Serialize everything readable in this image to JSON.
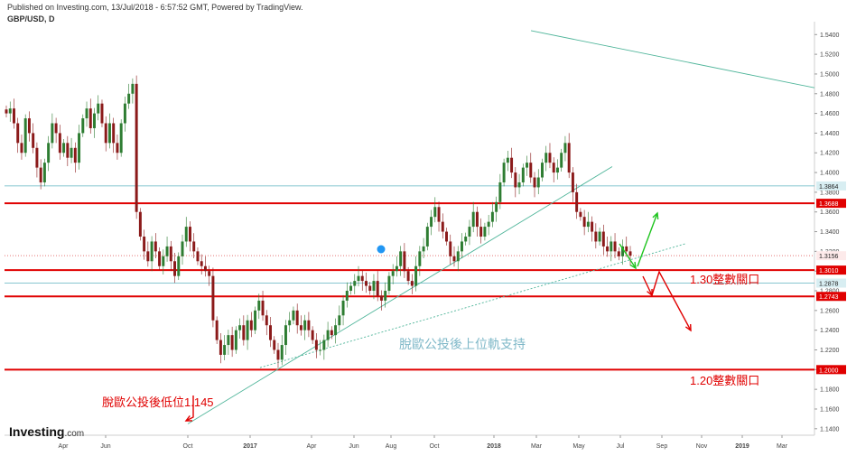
{
  "header": {
    "published": "Published on Investing.com, 13/Jul/2018 - 6:57:52 GMT, Powered by TradingView.",
    "symbol": "GBP/USD, D"
  },
  "logo": {
    "name": "Investing",
    "suffix": ".com"
  },
  "chart_data": {
    "type": "candlestick",
    "title": "GBP/USD, D",
    "ylim": [
      1.13,
      1.55
    ],
    "x_ticks": [
      "Apr",
      "Jun",
      "Oct",
      "2017",
      "Apr",
      "Jun",
      "Aug",
      "Oct",
      "2018",
      "Mar",
      "May",
      "Jul",
      "Sep",
      "Nov",
      "2019",
      "Mar"
    ],
    "y_ticks": [
      "1.5400",
      "1.5200",
      "1.5000",
      "1.4800",
      "1.4600",
      "1.4400",
      "1.4200",
      "1.4000",
      "1.3800",
      "1.3600",
      "1.3400",
      "1.3200",
      "1.3000",
      "1.2800",
      "1.2600",
      "1.2400",
      "1.2200",
      "1.2000",
      "1.1800",
      "1.1600",
      "1.1400"
    ],
    "levels": [
      {
        "label": "1.3688",
        "value": 1.3688,
        "color": "#e00000",
        "style": "solid"
      },
      {
        "label": "1.3010",
        "value": 1.301,
        "color": "#e00000",
        "style": "solid"
      },
      {
        "label": "1.2743",
        "value": 1.2743,
        "color": "#e00000",
        "style": "solid"
      },
      {
        "label": "1.2000",
        "value": 1.2,
        "color": "#e00000",
        "style": "solid"
      },
      {
        "label": "1.3864",
        "value": 1.3864,
        "color": "#5fb3c0",
        "style": "thin"
      },
      {
        "label": "1.3156",
        "value": 1.3156,
        "color": "#e57373",
        "style": "dotted"
      },
      {
        "label": "1.2878",
        "value": 1.2878,
        "color": "#5fb3c0",
        "style": "thin"
      }
    ],
    "series": [
      {
        "values": [
          1.46,
          1.465,
          1.45,
          1.43,
          1.42,
          1.455,
          1.44,
          1.425,
          1.405,
          1.39,
          1.41,
          1.43,
          1.45,
          1.44,
          1.42,
          1.43,
          1.415,
          1.425,
          1.41,
          1.44,
          1.455,
          1.465,
          1.445,
          1.46,
          1.47,
          1.45,
          1.43,
          1.45,
          1.43,
          1.42,
          1.45,
          1.47,
          1.48,
          1.49,
          1.36,
          1.335,
          1.32,
          1.31,
          1.33,
          1.32,
          1.305,
          1.315,
          1.325,
          1.31,
          1.295,
          1.315,
          1.33,
          1.345,
          1.33,
          1.32,
          1.31,
          1.305,
          1.3,
          1.295,
          1.25,
          1.23,
          1.215,
          1.225,
          1.235,
          1.22,
          1.24,
          1.245,
          1.23,
          1.25,
          1.24,
          1.26,
          1.27,
          1.255,
          1.245,
          1.23,
          1.22,
          1.21,
          1.225,
          1.245,
          1.25,
          1.26,
          1.245,
          1.24,
          1.25,
          1.24,
          1.23,
          1.22,
          1.22,
          1.23,
          1.24,
          1.235,
          1.245,
          1.255,
          1.27,
          1.28,
          1.285,
          1.29,
          1.295,
          1.29,
          1.285,
          1.28,
          1.29,
          1.275,
          1.27,
          1.28,
          1.295,
          1.3,
          1.305,
          1.32,
          1.3,
          1.29,
          1.285,
          1.305,
          1.32,
          1.325,
          1.345,
          1.355,
          1.365,
          1.35,
          1.34,
          1.33,
          1.315,
          1.31,
          1.32,
          1.33,
          1.335,
          1.345,
          1.36,
          1.345,
          1.335,
          1.345,
          1.35,
          1.36,
          1.37,
          1.39,
          1.41,
          1.415,
          1.4,
          1.385,
          1.39,
          1.405,
          1.41,
          1.395,
          1.385,
          1.395,
          1.41,
          1.42,
          1.41,
          1.4,
          1.405,
          1.42,
          1.43,
          1.4,
          1.38,
          1.36,
          1.355,
          1.345,
          1.35,
          1.34,
          1.33,
          1.34,
          1.325,
          1.32,
          1.33,
          1.32,
          1.315,
          1.325,
          1.32,
          1.3156
        ]
      }
    ],
    "trendlines": [
      {
        "from": [
          "Oct",
          1.145
        ],
        "to": [
          "May",
          1.406
        ],
        "style": "solid"
      },
      {
        "from": [
          "2017",
          1.202
        ],
        "to": [
          "Jul",
          1.328
        ],
        "style": "dotted"
      },
      {
        "from": [
          "Mar",
          1.544
        ],
        "to": [
          "2019",
          1.486
        ],
        "style": "solid"
      }
    ],
    "annotations": [
      {
        "text": "脫歐公投後低位1.145",
        "color": "#e00000"
      },
      {
        "text": "脫歐公投後上位軌支持",
        "color": "#7fb8c8"
      },
      {
        "text": "1.30整數關口",
        "color": "#e00000"
      },
      {
        "text": "1.20整數關口",
        "color": "#e00000"
      }
    ]
  }
}
